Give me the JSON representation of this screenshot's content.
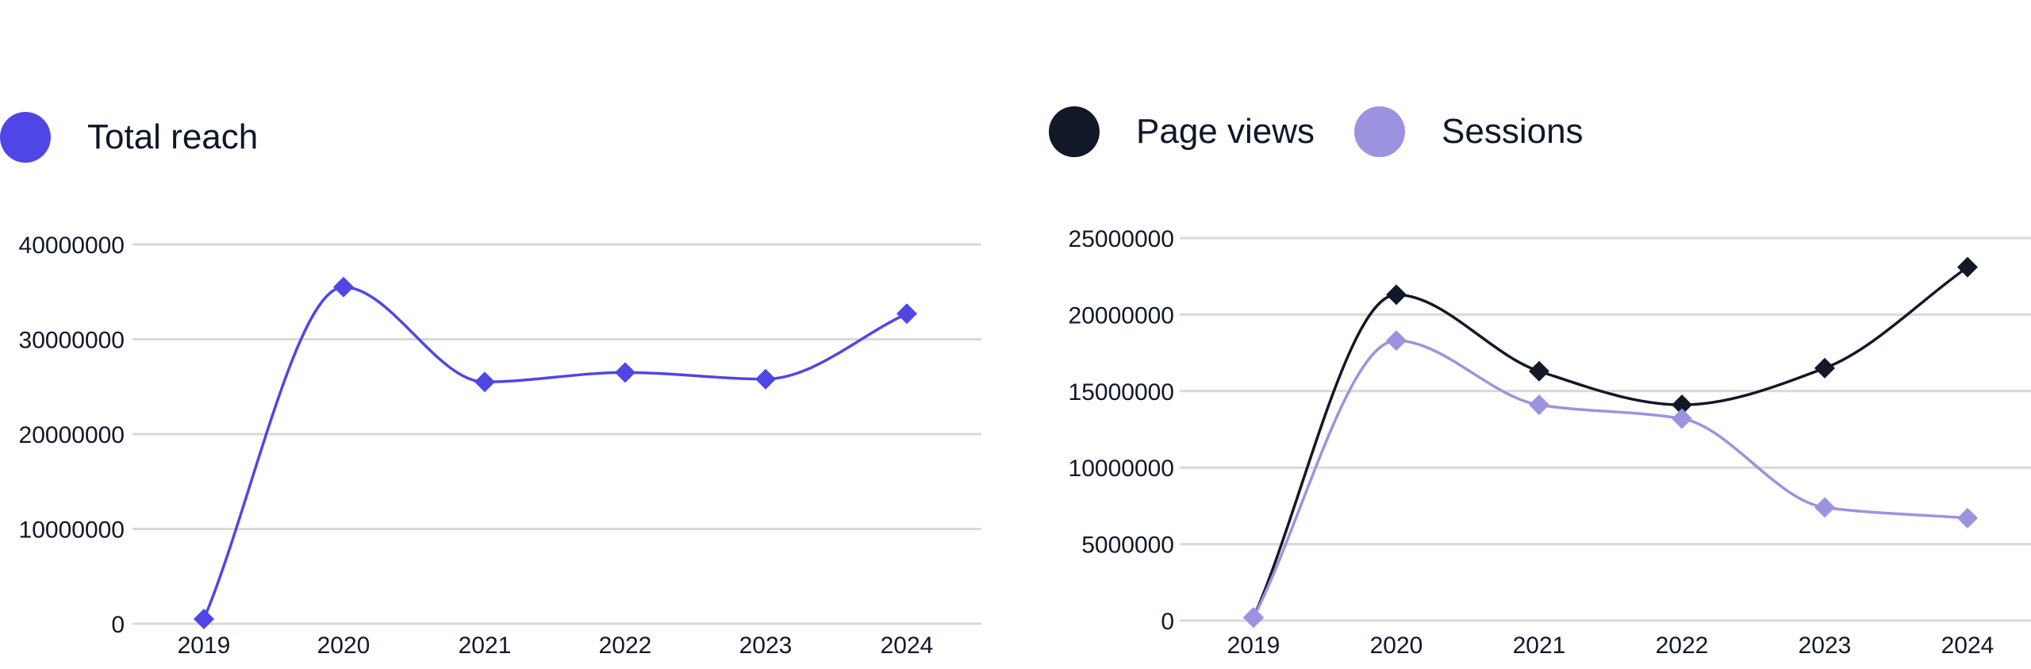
{
  "colors": {
    "total_reach": "#4f46e5",
    "page_views": "#111827",
    "sessions": "#9b93e0",
    "grid": "#d9d9d9"
  },
  "chart_data": [
    {
      "type": "line",
      "title": "",
      "legend": [
        {
          "label": "Total reach",
          "color": "#4f46e5"
        }
      ],
      "legend_position": "top-left",
      "categories": [
        "2019",
        "2020",
        "2021",
        "2022",
        "2023",
        "2024"
      ],
      "series": [
        {
          "name": "Total reach",
          "color": "#4f46e5",
          "values": [
            500000,
            35500000,
            25500000,
            26500000,
            25800000,
            32700000
          ]
        }
      ],
      "y_ticks": [
        "0",
        "10000000",
        "20000000",
        "30000000",
        "40000000"
      ],
      "ylim": [
        0,
        40000000
      ],
      "grid": true,
      "xlabel": "",
      "ylabel": ""
    },
    {
      "type": "line",
      "title": "",
      "legend": [
        {
          "label": "Page views",
          "color": "#111827"
        },
        {
          "label": "Sessions",
          "color": "#9b93e0"
        }
      ],
      "legend_position": "top-left",
      "categories": [
        "2019",
        "2020",
        "2021",
        "2022",
        "2023",
        "2024"
      ],
      "series": [
        {
          "name": "Page views",
          "color": "#111827",
          "values": [
            200000,
            21300000,
            16300000,
            14100000,
            16500000,
            23100000
          ]
        },
        {
          "name": "Sessions",
          "color": "#9b93e0",
          "values": [
            200000,
            18300000,
            14100000,
            13200000,
            7400000,
            6700000
          ]
        }
      ],
      "y_ticks": [
        "0",
        "5000000",
        "10000000",
        "15000000",
        "20000000",
        "25000000"
      ],
      "ylim": [
        0,
        25000000
      ],
      "grid": true,
      "xlabel": "",
      "ylabel": ""
    }
  ]
}
